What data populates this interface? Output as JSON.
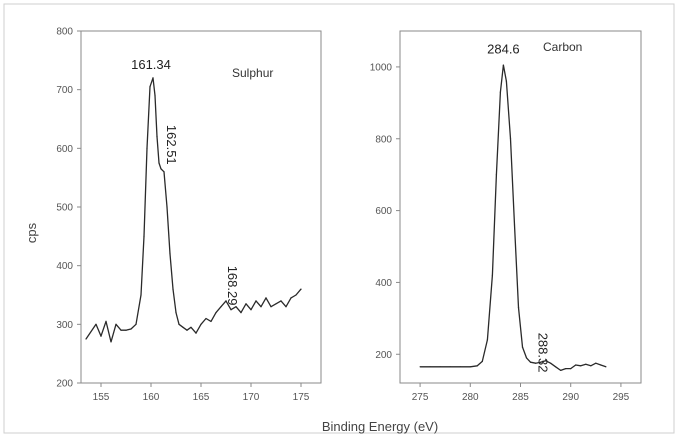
{
  "chart_data": [
    {
      "type": "line",
      "name_label": "Sulphur",
      "xlabel": "",
      "ylabel": "cps",
      "xlim": [
        153,
        177
      ],
      "ylim": [
        200,
        800
      ],
      "x_ticks": [
        155,
        160,
        165,
        170,
        175
      ],
      "y_ticks": [
        200,
        300,
        400,
        500,
        600,
        700,
        800
      ],
      "peak_annotations": [
        {
          "label": "161.34",
          "x": 160.0,
          "y": 735,
          "rotated": false
        },
        {
          "label": "162.51",
          "x": 161.6,
          "y": 640,
          "rotated": true
        },
        {
          "label": "168.29",
          "x": 167.7,
          "y": 400,
          "rotated": true
        }
      ],
      "series": [
        {
          "x": [
            153.5,
            154.5,
            155.0,
            155.5,
            156.0,
            156.5,
            157.0,
            157.5,
            158.0,
            158.5,
            159.0,
            159.3,
            159.6,
            159.9,
            160.2,
            160.4,
            160.6,
            160.8,
            161.0,
            161.3,
            161.6,
            161.9,
            162.2,
            162.5,
            162.8,
            163.2,
            163.6,
            164.0,
            164.5,
            165.0,
            165.5,
            166.0,
            166.5,
            167.0,
            167.5,
            168.0,
            168.5,
            169.0,
            169.5,
            170.0,
            170.5,
            171.0,
            171.5,
            172.0,
            172.5,
            173.0,
            173.5,
            174.0,
            174.5,
            175.0
          ],
          "y": [
            275,
            300,
            280,
            305,
            270,
            300,
            290,
            290,
            292,
            300,
            350,
            450,
            600,
            705,
            720,
            690,
            620,
            575,
            565,
            560,
            500,
            420,
            360,
            320,
            300,
            295,
            290,
            295,
            285,
            300,
            310,
            305,
            320,
            330,
            340,
            325,
            330,
            320,
            335,
            325,
            340,
            330,
            345,
            330,
            335,
            340,
            330,
            345,
            350,
            360
          ]
        }
      ]
    },
    {
      "type": "line",
      "name_label": "Carbon",
      "xlabel": "Binding Energy (eV)",
      "ylabel": "",
      "xlim": [
        273,
        297
      ],
      "ylim": [
        120,
        1100
      ],
      "x_ticks": [
        275,
        280,
        285,
        290,
        295
      ],
      "y_ticks": [
        200,
        400,
        600,
        800,
        1000
      ],
      "peak_annotations": [
        {
          "label": "284.6",
          "x": 283.3,
          "y": 1038,
          "rotated": false
        },
        {
          "label": "288.32",
          "x": 286.8,
          "y": 260,
          "rotated": true
        }
      ],
      "series": [
        {
          "x": [
            275.0,
            276.0,
            277.0,
            278.0,
            279.0,
            280.0,
            280.7,
            281.2,
            281.7,
            282.2,
            282.6,
            283.0,
            283.3,
            283.6,
            284.0,
            284.4,
            284.8,
            285.2,
            285.6,
            286.0,
            286.5,
            287.0,
            287.5,
            288.0,
            288.5,
            289.0,
            289.5,
            290.0,
            290.5,
            291.0,
            291.5,
            292.0,
            292.5,
            293.0,
            293.5
          ],
          "y": [
            165,
            165,
            165,
            165,
            165,
            165,
            168,
            180,
            240,
            420,
            700,
            930,
            1005,
            960,
            800,
            560,
            330,
            220,
            190,
            178,
            175,
            178,
            182,
            175,
            165,
            155,
            160,
            160,
            170,
            168,
            172,
            168,
            175,
            170,
            165
          ]
        }
      ]
    }
  ]
}
